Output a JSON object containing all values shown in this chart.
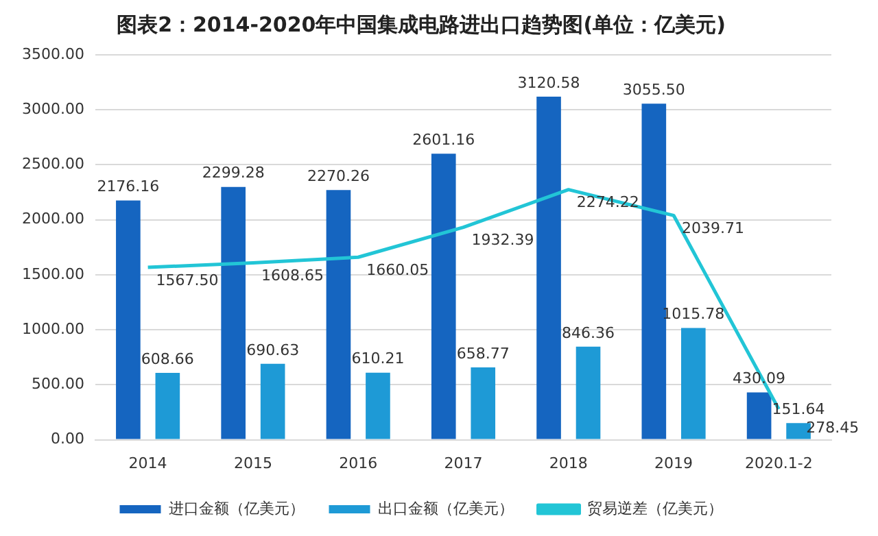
{
  "chart_data": {
    "type": "bar",
    "title": "图表2：2014-2020年中国集成电路进出口趋势图(单位：亿美元)",
    "categories": [
      "2014",
      "2015",
      "2016",
      "2017",
      "2018",
      "2019",
      "2020.1-2"
    ],
    "series": [
      {
        "name": "进口金额（亿美元）",
        "color": "#1565c0",
        "values": [
          2176.16,
          2299.28,
          2270.26,
          2601.16,
          3120.58,
          3055.5,
          430.09
        ],
        "value_labels": [
          "2176.16",
          "2299.28",
          "2270.26",
          "2601.16",
          "3120.58",
          "3055.50",
          "430.09"
        ]
      },
      {
        "name": "出口金额（亿美元）",
        "color": "#1e9ad6",
        "values": [
          608.66,
          690.63,
          610.21,
          658.77,
          846.36,
          1015.78,
          151.64
        ],
        "value_labels": [
          "608.66",
          "690.63",
          "610.21",
          "658.77",
          "846.36",
          "1015.78",
          "151.64"
        ]
      },
      {
        "name": "贸易逆差（亿美元）",
        "type": "line",
        "color": "#22c5d6",
        "values": [
          1567.5,
          1608.65,
          1660.05,
          1932.39,
          2274.22,
          2039.71,
          278.45
        ],
        "value_labels": [
          "1567.50",
          "1608.65",
          "1660.05",
          "1932.39",
          "2274.22",
          "2039.71",
          "278.45"
        ]
      }
    ],
    "ylim": [
      0,
      3500
    ],
    "yticks": [
      {
        "value": 0,
        "label": "0.00"
      },
      {
        "value": 500,
        "label": "500.00"
      },
      {
        "value": 1000,
        "label": "1000.00"
      },
      {
        "value": 1500,
        "label": "1500.00"
      },
      {
        "value": 2000,
        "label": "2000.00"
      },
      {
        "value": 2500,
        "label": "2500.00"
      },
      {
        "value": 3000,
        "label": "3000.00"
      },
      {
        "value": 3500,
        "label": "3500.00"
      }
    ],
    "grid": "y",
    "legend": "bottom",
    "marker": "none",
    "line_style": "solid"
  }
}
